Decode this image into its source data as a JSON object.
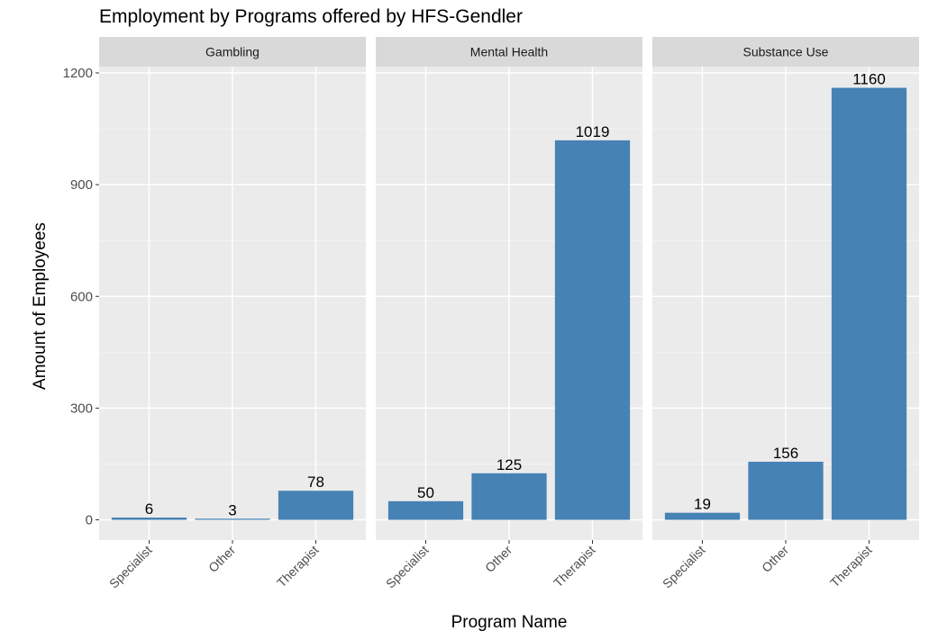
{
  "chart_data": {
    "type": "bar",
    "title": "Employment by Programs offered by HFS-Gendler",
    "xlabel": "Program Name",
    "ylabel": "Amount of Employees",
    "ylim": [
      -35,
      1290
    ],
    "yticks": [
      0,
      300,
      600,
      900,
      1200
    ],
    "categories": [
      "Specialist",
      "Other",
      "Therapist"
    ],
    "facets": [
      {
        "name": "Gambling",
        "values": [
          6,
          3,
          78
        ]
      },
      {
        "name": "Mental Health",
        "values": [
          50,
          125,
          1019
        ]
      },
      {
        "name": "Substance Use",
        "values": [
          19,
          156,
          1160
        ]
      }
    ],
    "grid": true,
    "legend": "none",
    "colors": {
      "bar": "#4682b4",
      "panel_background": "#ebebeb",
      "strip_background": "#d9d9d9",
      "grid_major": "#ffffff",
      "grid_minor": "#f5f5f5"
    }
  }
}
